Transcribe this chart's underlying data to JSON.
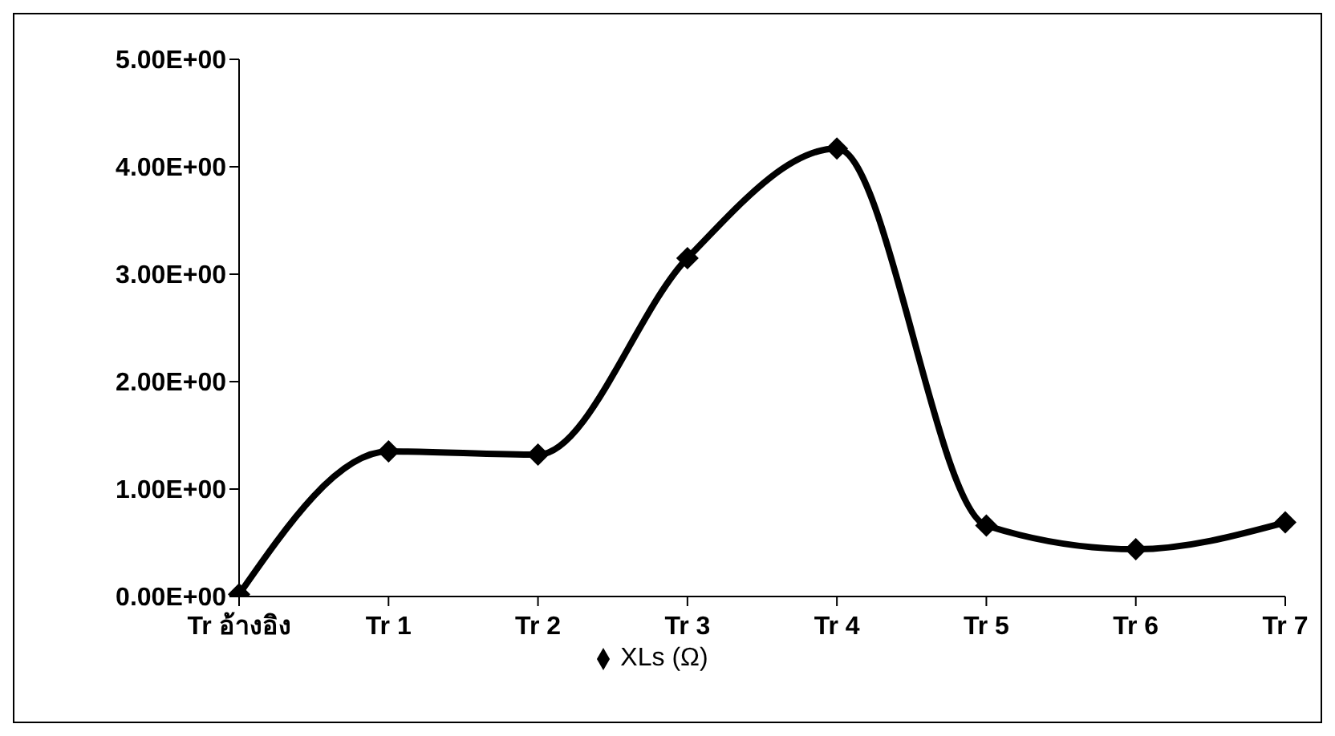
{
  "chart_data": {
    "type": "line",
    "categories": [
      "Tr อ้างอิง",
      "Tr 1",
      "Tr 2",
      "Tr 3",
      "Tr 4",
      "Tr 5",
      "Tr 6",
      "Tr 7"
    ],
    "series": [
      {
        "name": "XLs (Ω)",
        "color": "#000000",
        "values": [
          0.02,
          1.35,
          1.32,
          3.15,
          4.17,
          0.66,
          0.44,
          0.69
        ]
      }
    ],
    "ylim": [
      0,
      5
    ],
    "yticks": [
      {
        "value": 0,
        "label": "0.00E+00"
      },
      {
        "value": 1,
        "label": "1.00E+00"
      },
      {
        "value": 2,
        "label": "2.00E+00"
      },
      {
        "value": 3,
        "label": "3.00E+00"
      },
      {
        "value": 4,
        "label": "4.00E+00"
      },
      {
        "value": 5,
        "label": "5.00E+00"
      }
    ],
    "marker": "diamond",
    "legend": "bottom",
    "grid": false
  }
}
